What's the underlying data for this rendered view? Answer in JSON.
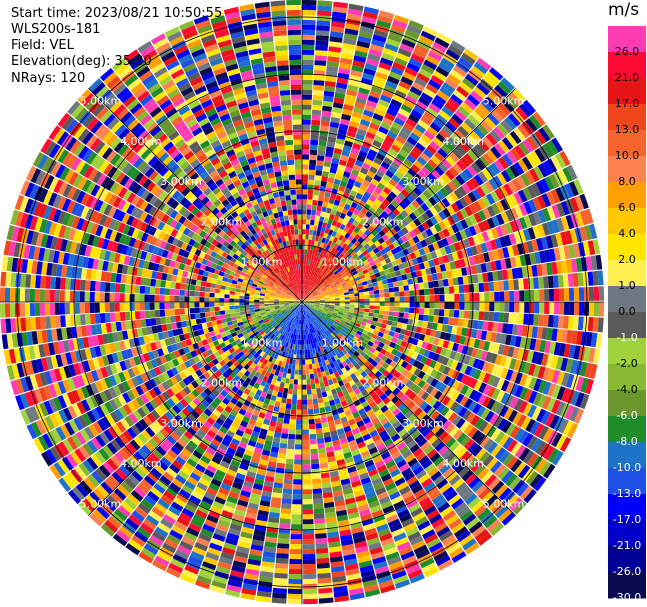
{
  "info": {
    "start_time": "Start time: 2023/08/21 10:50:55",
    "instrument": "WLS200s-181",
    "field": "Field: VEL",
    "elevation": "Elevation(deg): 35.30",
    "nrays": "NRays: 120"
  },
  "colorbar": {
    "unit": "m/s",
    "levels": [
      {
        "label": "26.0",
        "color": "#ff3cb4"
      },
      {
        "label": "21.0",
        "color": "#ff0a32"
      },
      {
        "label": "17.0",
        "color": "#e61414"
      },
      {
        "label": "13.0",
        "color": "#f0461e"
      },
      {
        "label": "10.0",
        "color": "#f5642d"
      },
      {
        "label": "8.0",
        "color": "#fa8250"
      },
      {
        "label": "6.0",
        "color": "#ffa000"
      },
      {
        "label": "4.0",
        "color": "#ffc800"
      },
      {
        "label": "2.0",
        "color": "#ffe600"
      },
      {
        "label": "1.0",
        "color": "#fff050"
      },
      {
        "label": "0.0",
        "color": "#6e7882"
      },
      {
        "label": "-1.0",
        "color": "#5a5a5a"
      },
      {
        "label": "-2.0",
        "color": "#a0d23c"
      },
      {
        "label": "-4.0",
        "color": "#87b932"
      },
      {
        "label": "-6.0",
        "color": "#69962d"
      },
      {
        "label": "-8.0",
        "color": "#1e8c28"
      },
      {
        "label": "-10.0",
        "color": "#1e73c8"
      },
      {
        "label": "-13.0",
        "color": "#1e50e6"
      },
      {
        "label": "-17.0",
        "color": "#0000ff"
      },
      {
        "label": "-21.0",
        "color": "#0000c8"
      },
      {
        "label": "-26.0",
        "color": "#000096"
      },
      {
        "label": "-30.0",
        "color": "#0a0a50"
      }
    ]
  },
  "chart_data": {
    "type": "heatmap",
    "projection": "polar PPI",
    "field": "VEL",
    "units": "m/s",
    "nrays": 120,
    "range_rings_km": [
      1.0,
      2.0,
      3.0,
      4.0,
      5.0
    ],
    "ring_labels": [
      "1.00km",
      "2.00km",
      "3.00km",
      "4.00km",
      "5.00km"
    ],
    "range_max_km": 5.3,
    "value_range": [
      -30.0,
      26.0
    ],
    "near_field_pattern": {
      "north_sector": "positive 10 to 21 m/s",
      "east_west": "near 0 to 2 m/s",
      "south_sector": "negative -13 to -21 m/s"
    },
    "far_field": "noise, mixed values across full scale",
    "grid": true
  }
}
